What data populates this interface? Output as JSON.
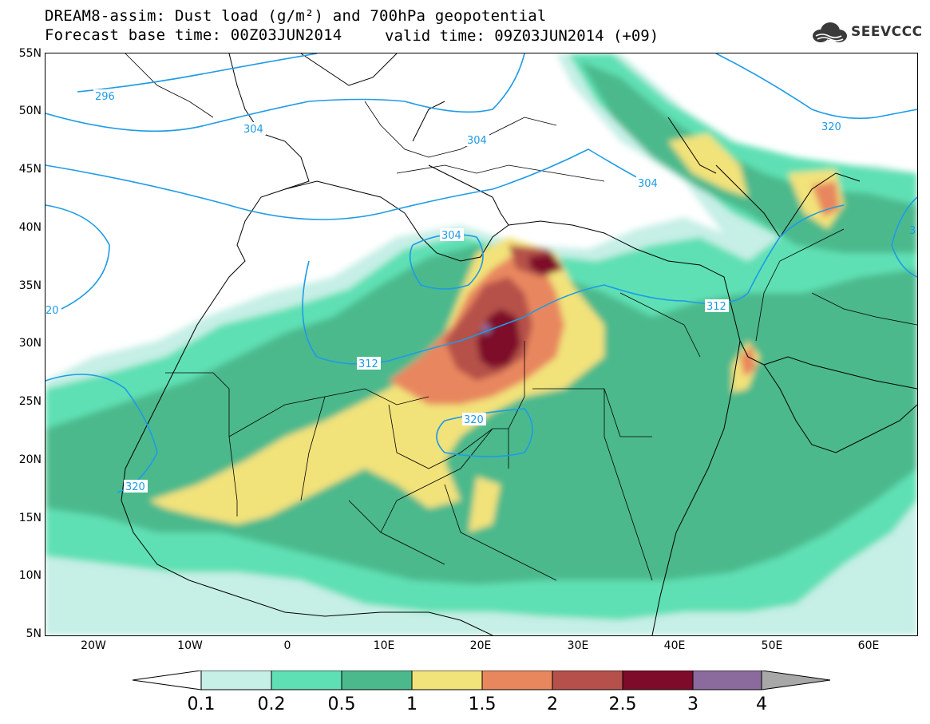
{
  "title_line1": "DREAM8-assim: Dust load (g/m²) and 700hPa geopotential",
  "title_line2": "Forecast base time: 00Z03JUN2014",
  "valid_time": "valid time: 09Z03JUN2014 (+09)",
  "logo_text": "SEEVCCC",
  "logo_icon": "cloud-icon",
  "map": {
    "lon_range": [
      -25,
      65
    ],
    "lat_range": [
      5,
      55
    ],
    "y_ticks": [
      "55N",
      "50N",
      "45N",
      "40N",
      "35N",
      "30N",
      "25N",
      "20N",
      "15N",
      "10N",
      "5N"
    ],
    "x_ticks": [
      "20W",
      "10W",
      "0",
      "10E",
      "20E",
      "30E",
      "40E",
      "50E",
      "60E"
    ],
    "contour_labels": [
      "296",
      "304",
      "304",
      "304",
      "304",
      "312",
      "312",
      "320",
      "320",
      "320",
      "20",
      "3"
    ],
    "contour_color": "#1e9be6",
    "border_color": "#000000"
  },
  "colorbar": {
    "labels": [
      "0.1",
      "0.2",
      "0.5",
      "1",
      "1.5",
      "2",
      "2.5",
      "3",
      "4"
    ],
    "colors": [
      "#ffffff",
      "#c6efe6",
      "#5fe0b4",
      "#4bb98c",
      "#f2e27a",
      "#e8875e",
      "#b5514a",
      "#7e0b2a",
      "#8b6a9d",
      "#a8a8a8"
    ]
  },
  "chart_data": {
    "type": "heatmap",
    "variable": "Dust load (g/m²)",
    "contour_variable": "700hPa geopotential",
    "levels": [
      0.1,
      0.2,
      0.5,
      1,
      1.5,
      2,
      2.5,
      3,
      4
    ],
    "geopotential_contours": [
      296,
      304,
      312,
      320
    ]
  }
}
